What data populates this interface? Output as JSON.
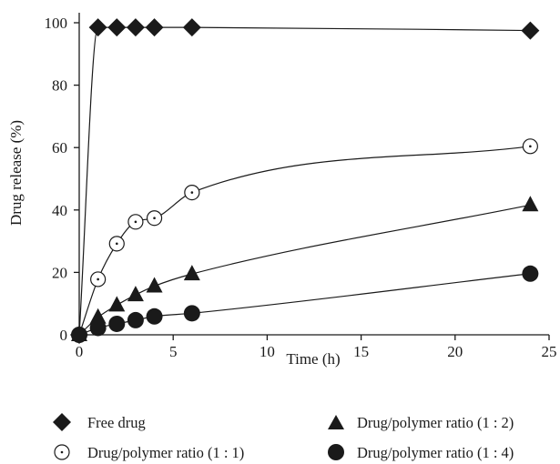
{
  "chart_data": {
    "type": "scatter",
    "title": "",
    "xlabel": "Time (h)",
    "ylabel": "Drug release (%)",
    "xlim": [
      0,
      25
    ],
    "ylim": [
      0,
      100
    ],
    "x_ticks": [
      "0",
      "5",
      "10",
      "15",
      "20",
      "25"
    ],
    "y_ticks": [
      "0",
      "20",
      "40",
      "60",
      "80",
      "100"
    ],
    "grid": false,
    "legend_position": "bottom",
    "series": [
      {
        "name": "Free drug",
        "marker": "diamond",
        "x": [
          0,
          1,
          2,
          3,
          4,
          6,
          24
        ],
        "y": [
          0,
          98.5,
          98.5,
          98.5,
          98.5,
          98.5,
          97.5
        ]
      },
      {
        "name": "Drug/polymer ratio (1 : 1)",
        "marker": "circle-dot",
        "x": [
          0,
          1,
          2,
          3,
          4,
          6,
          24
        ],
        "y": [
          0,
          17.8,
          29.2,
          36.2,
          37.4,
          45.6,
          60.4
        ]
      },
      {
        "name": "Drug/polymer ratio (1 : 2)",
        "marker": "triangle",
        "x": [
          0,
          1,
          2,
          3,
          4,
          6,
          24
        ],
        "y": [
          0,
          5.6,
          9.5,
          12.8,
          15.6,
          19.5,
          41.6
        ]
      },
      {
        "name": "Drug/polymer ratio (1 : 4)",
        "marker": "filled-circle",
        "x": [
          0,
          1,
          2,
          3,
          4,
          6,
          24
        ],
        "y": [
          0,
          2.2,
          3.5,
          4.7,
          5.9,
          6.9,
          19.6
        ]
      }
    ]
  }
}
